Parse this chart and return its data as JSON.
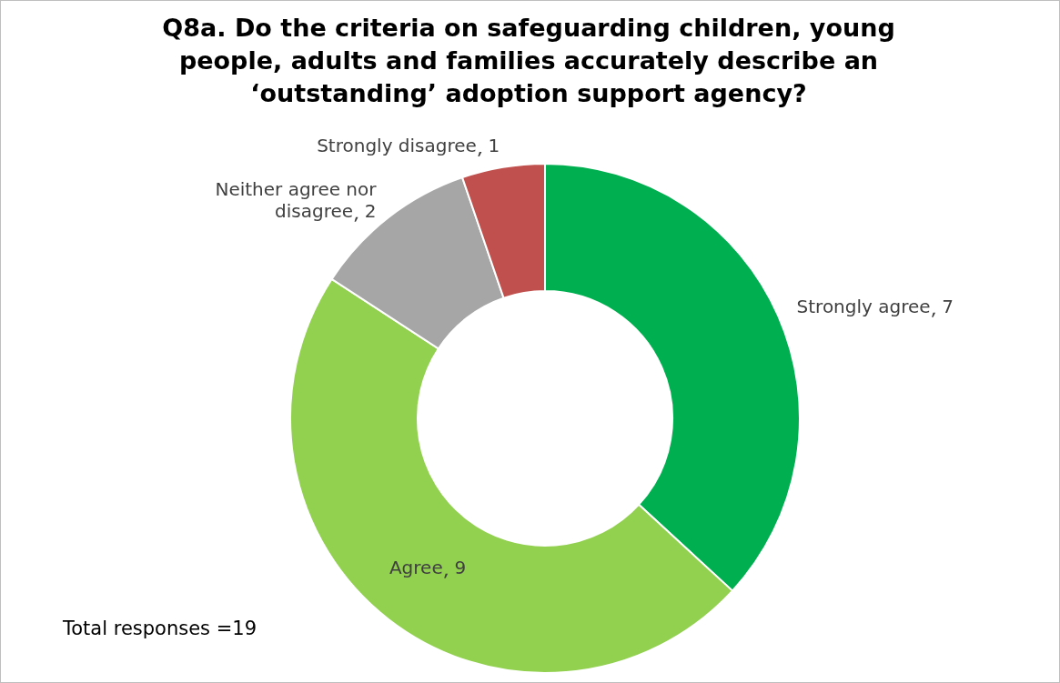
{
  "chart_data": {
    "type": "donut",
    "title": "Q8a.  Do the criteria on safeguarding children, young people, adults and families accurately describe an ‘outstanding’ adoption support agency?",
    "categories": [
      "Strongly agree",
      "Agree",
      "Neither agree nor disagree",
      "Strongly disagree"
    ],
    "values": [
      7,
      9,
      2,
      1
    ],
    "colors": [
      "#00b050",
      "#92d050",
      "#a6a6a6",
      "#c0504d"
    ],
    "data_labels": true,
    "legend": false,
    "annotations": [
      "Total responses =19"
    ]
  }
}
